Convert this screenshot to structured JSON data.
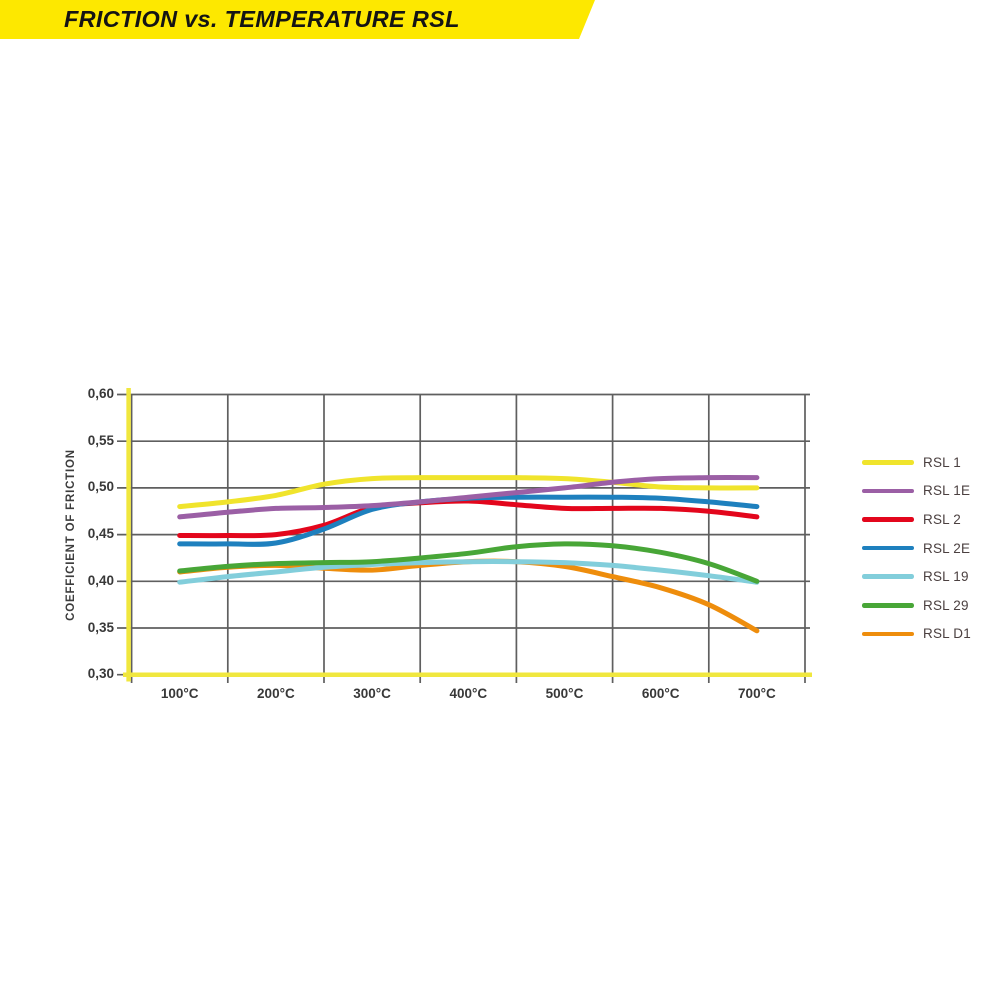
{
  "banner": {
    "title": "FRICTION vs. TEMPERATURE RSL",
    "bg_color": "#fde800",
    "text_color": "#141414"
  },
  "chart_data": {
    "type": "line",
    "title": "FRICTION vs. TEMPERATURE RSL",
    "xlabel": "",
    "ylabel": "COEFFICIENT OF FRICTION",
    "x_ticks": [
      "100°C",
      "200°C",
      "300°C",
      "400°C",
      "500°C",
      "600°C",
      "700°C"
    ],
    "y_ticks": [
      "0,60",
      "0,55",
      "0,50",
      "0,45",
      "0,40",
      "0,35",
      "0,30"
    ],
    "xlim": [
      100,
      700
    ],
    "ylim": [
      0.3,
      0.6
    ],
    "grid": true,
    "grid_color": "#5f5f5f",
    "axis_color": "#f0e73e",
    "legend_position": "right",
    "legend_text_color": "#4b4040",
    "draw_order": [
      "RSL 1",
      "RSL 2",
      "RSL 2E",
      "RSL 1E",
      "RSL D1",
      "RSL 19",
      "RSL 29"
    ],
    "series": [
      {
        "name": "RSL 1",
        "color": "#f0e42c",
        "points": [
          [
            100,
            0.48
          ],
          [
            150,
            0.485
          ],
          [
            200,
            0.492
          ],
          [
            250,
            0.504
          ],
          [
            300,
            0.51
          ],
          [
            350,
            0.511
          ],
          [
            400,
            0.511
          ],
          [
            450,
            0.511
          ],
          [
            500,
            0.51
          ],
          [
            550,
            0.506
          ],
          [
            600,
            0.501
          ],
          [
            650,
            0.5
          ],
          [
            700,
            0.5
          ]
        ]
      },
      {
        "name": "RSL 1E",
        "color": "#9b5fa5",
        "points": [
          [
            100,
            0.469
          ],
          [
            150,
            0.474
          ],
          [
            200,
            0.478
          ],
          [
            250,
            0.479
          ],
          [
            300,
            0.481
          ],
          [
            350,
            0.485
          ],
          [
            400,
            0.49
          ],
          [
            450,
            0.495
          ],
          [
            500,
            0.5
          ],
          [
            550,
            0.506
          ],
          [
            600,
            0.51
          ],
          [
            650,
            0.511
          ],
          [
            700,
            0.511
          ]
        ]
      },
      {
        "name": "RSL 2",
        "color": "#e3061c",
        "points": [
          [
            100,
            0.449
          ],
          [
            150,
            0.449
          ],
          [
            200,
            0.45
          ],
          [
            250,
            0.46
          ],
          [
            300,
            0.479
          ],
          [
            350,
            0.484
          ],
          [
            400,
            0.486
          ],
          [
            450,
            0.482
          ],
          [
            500,
            0.478
          ],
          [
            550,
            0.478
          ],
          [
            600,
            0.478
          ],
          [
            650,
            0.475
          ],
          [
            700,
            0.469
          ]
        ]
      },
      {
        "name": "RSL 2E",
        "color": "#1e80be",
        "points": [
          [
            100,
            0.44
          ],
          [
            150,
            0.44
          ],
          [
            200,
            0.441
          ],
          [
            250,
            0.456
          ],
          [
            300,
            0.477
          ],
          [
            350,
            0.485
          ],
          [
            400,
            0.489
          ],
          [
            450,
            0.49
          ],
          [
            500,
            0.49
          ],
          [
            550,
            0.49
          ],
          [
            600,
            0.489
          ],
          [
            650,
            0.485
          ],
          [
            700,
            0.48
          ]
        ]
      },
      {
        "name": "RSL 19",
        "color": "#82cedb",
        "points": [
          [
            100,
            0.399
          ],
          [
            150,
            0.405
          ],
          [
            200,
            0.41
          ],
          [
            250,
            0.415
          ],
          [
            300,
            0.418
          ],
          [
            350,
            0.42
          ],
          [
            400,
            0.421
          ],
          [
            450,
            0.421
          ],
          [
            500,
            0.42
          ],
          [
            550,
            0.417
          ],
          [
            600,
            0.412
          ],
          [
            650,
            0.406
          ],
          [
            700,
            0.399
          ]
        ]
      },
      {
        "name": "RSL 29",
        "color": "#48a637",
        "points": [
          [
            100,
            0.411
          ],
          [
            150,
            0.416
          ],
          [
            200,
            0.419
          ],
          [
            250,
            0.42
          ],
          [
            300,
            0.421
          ],
          [
            350,
            0.425
          ],
          [
            400,
            0.43
          ],
          [
            450,
            0.437
          ],
          [
            500,
            0.44
          ],
          [
            550,
            0.438
          ],
          [
            600,
            0.431
          ],
          [
            650,
            0.419
          ],
          [
            700,
            0.4
          ]
        ]
      },
      {
        "name": "RSL D1",
        "color": "#ee8d0c",
        "points": [
          [
            100,
            0.41
          ],
          [
            150,
            0.415
          ],
          [
            200,
            0.417
          ],
          [
            250,
            0.414
          ],
          [
            300,
            0.412
          ],
          [
            350,
            0.417
          ],
          [
            400,
            0.421
          ],
          [
            450,
            0.421
          ],
          [
            500,
            0.416
          ],
          [
            550,
            0.405
          ],
          [
            600,
            0.393
          ],
          [
            650,
            0.375
          ],
          [
            700,
            0.347
          ]
        ]
      }
    ]
  }
}
